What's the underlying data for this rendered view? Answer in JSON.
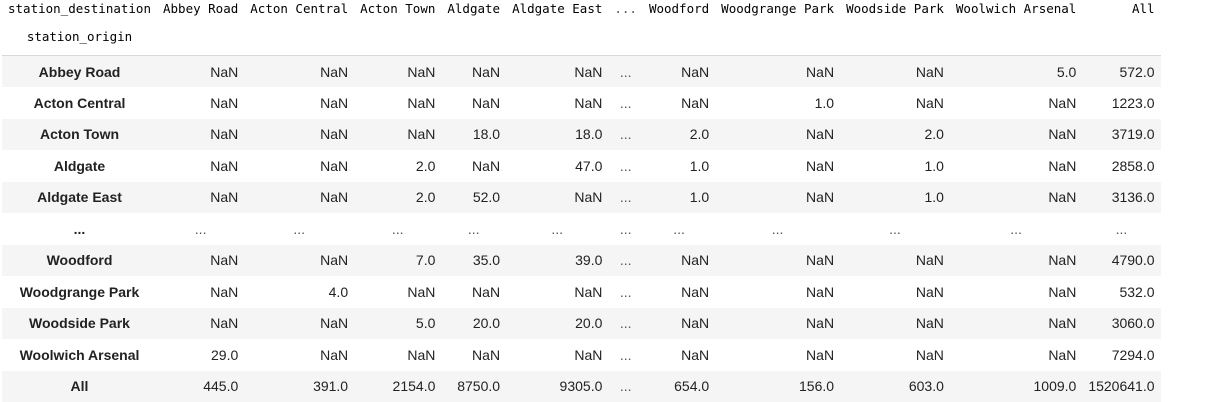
{
  "table": {
    "columns_name": "station_destination",
    "index_name": "station_origin",
    "columns": [
      "Abbey Road",
      "Acton Central",
      "Acton Town",
      "Aldgate",
      "Aldgate East",
      "...",
      "Woodford",
      "Woodgrange Park",
      "Woodside Park",
      "Woolwich Arsenal",
      "All"
    ],
    "rows": [
      {
        "label": "Abbey Road",
        "cells": [
          "NaN",
          "NaN",
          "NaN",
          "NaN",
          "NaN",
          "...",
          "NaN",
          "NaN",
          "NaN",
          "5.0",
          "572.0"
        ]
      },
      {
        "label": "Acton Central",
        "cells": [
          "NaN",
          "NaN",
          "NaN",
          "NaN",
          "NaN",
          "...",
          "NaN",
          "1.0",
          "NaN",
          "NaN",
          "1223.0"
        ]
      },
      {
        "label": "Acton Town",
        "cells": [
          "NaN",
          "NaN",
          "NaN",
          "18.0",
          "18.0",
          "...",
          "2.0",
          "NaN",
          "2.0",
          "NaN",
          "3719.0"
        ]
      },
      {
        "label": "Aldgate",
        "cells": [
          "NaN",
          "NaN",
          "2.0",
          "NaN",
          "47.0",
          "...",
          "1.0",
          "NaN",
          "1.0",
          "NaN",
          "2858.0"
        ]
      },
      {
        "label": "Aldgate East",
        "cells": [
          "NaN",
          "NaN",
          "2.0",
          "52.0",
          "NaN",
          "...",
          "1.0",
          "NaN",
          "1.0",
          "NaN",
          "3136.0"
        ]
      },
      {
        "label": "...",
        "cells": [
          "...",
          "...",
          "...",
          "...",
          "...",
          "...",
          "...",
          "...",
          "...",
          "...",
          "..."
        ]
      },
      {
        "label": "Woodford",
        "cells": [
          "NaN",
          "NaN",
          "7.0",
          "35.0",
          "39.0",
          "...",
          "NaN",
          "NaN",
          "NaN",
          "NaN",
          "4790.0"
        ]
      },
      {
        "label": "Woodgrange Park",
        "cells": [
          "NaN",
          "4.0",
          "NaN",
          "NaN",
          "NaN",
          "...",
          "NaN",
          "NaN",
          "NaN",
          "NaN",
          "532.0"
        ]
      },
      {
        "label": "Woodside Park",
        "cells": [
          "NaN",
          "NaN",
          "5.0",
          "20.0",
          "20.0",
          "...",
          "NaN",
          "NaN",
          "NaN",
          "NaN",
          "3060.0"
        ]
      },
      {
        "label": "Woolwich Arsenal",
        "cells": [
          "29.0",
          "NaN",
          "NaN",
          "NaN",
          "NaN",
          "...",
          "NaN",
          "NaN",
          "NaN",
          "NaN",
          "7294.0"
        ]
      },
      {
        "label": "All",
        "cells": [
          "445.0",
          "391.0",
          "2154.0",
          "8750.0",
          "9305.0",
          "...",
          "654.0",
          "156.0",
          "603.0",
          "1009.0",
          "1520641.0"
        ]
      }
    ]
  },
  "colors": {
    "stripe": "#f5f5f5",
    "header_rule": "#d9d9d9"
  }
}
